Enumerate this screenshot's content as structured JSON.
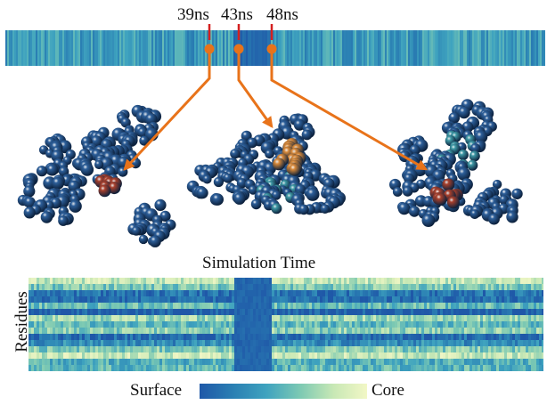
{
  "time_labels": [
    "39ns",
    "43ns",
    "48ns"
  ],
  "x_axis_title": "Simulation Time",
  "y_axis_title": "Residues",
  "legend": {
    "low_label": "Surface",
    "high_label": "Core"
  },
  "colors": {
    "colormap": [
      "#1f58a8",
      "#2a7fb3",
      "#3fa3bf",
      "#7cc9b3",
      "#c8e8b5",
      "#f2f7c6"
    ],
    "marker": "#e8731a",
    "tick": "#d42020",
    "core_orange": "#d98a3a",
    "core_red": "#a8402c",
    "atom_blue": "#2d5f9a"
  }
}
